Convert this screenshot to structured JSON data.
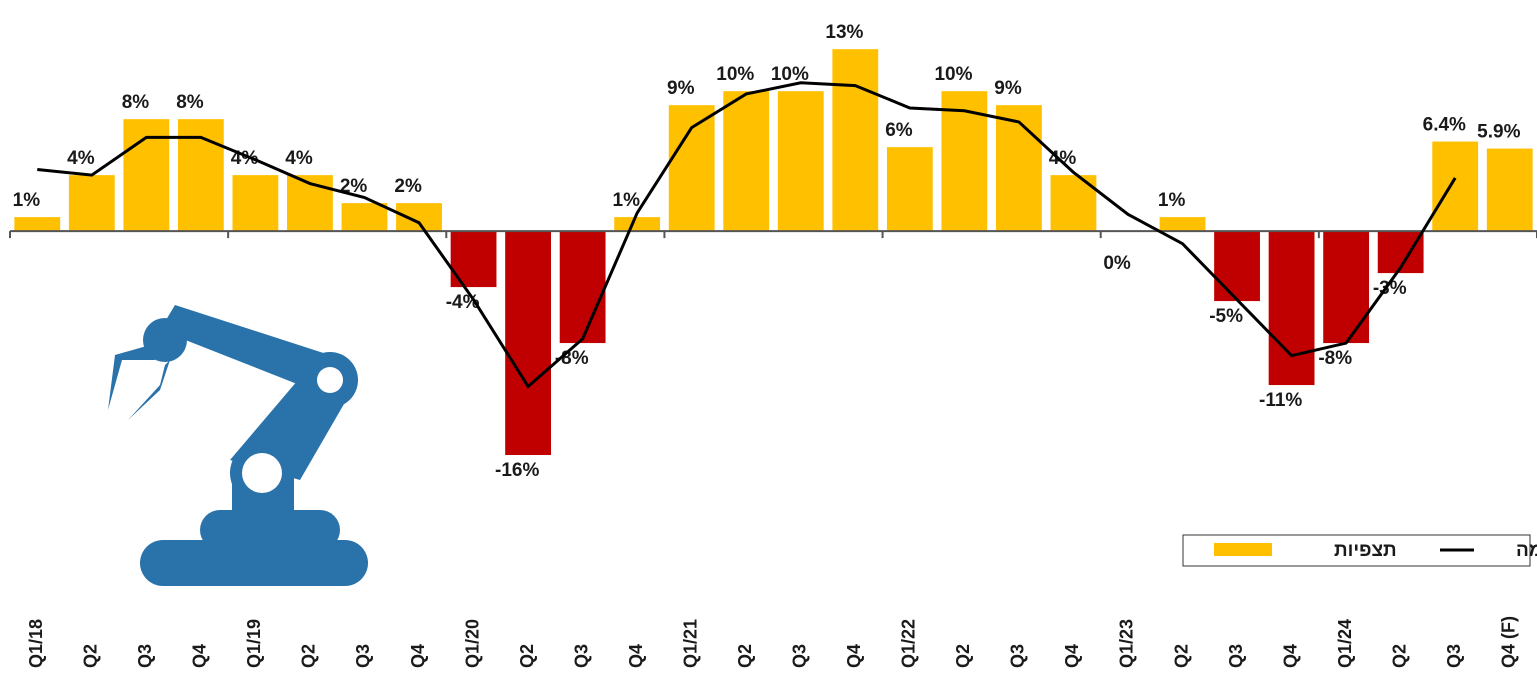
{
  "chart_data": {
    "type": "bar",
    "categories": [
      "Q1/18",
      "Q2",
      "Q3",
      "Q4",
      "Q1/19",
      "Q2",
      "Q3",
      "Q4",
      "Q1/20",
      "Q2",
      "Q3",
      "Q4",
      "Q1/21",
      "Q2",
      "Q3",
      "Q4",
      "Q1/22",
      "Q2",
      "Q3",
      "Q4",
      "Q1/23",
      "Q2",
      "Q3",
      "Q4",
      "Q1/24",
      "Q2",
      "Q3",
      "Q4 (F)"
    ],
    "series": [
      {
        "name": "תצפיות",
        "type": "bar",
        "color": "#ffc000",
        "negative_color": "#c00000",
        "values": [
          1,
          4,
          8,
          8,
          4,
          4,
          2,
          2,
          -4,
          -16,
          -8,
          1,
          9,
          10,
          10,
          13,
          6,
          10,
          9,
          4,
          0,
          1,
          -5,
          -11,
          -8,
          -3,
          6.4,
          5.9
        ],
        "value_labels": [
          "1%",
          "4%",
          "8%",
          "8%",
          "4%",
          "4%",
          "2%",
          "2%",
          "-4%",
          "-16%",
          "-8%",
          "1%",
          "9%",
          "10%",
          "10%",
          "13%",
          "6%",
          "10%",
          "9%",
          "4%",
          "0%",
          "1%",
          "-5%",
          "-11%",
          "-8%",
          "-3%",
          "6.4%",
          "5.9%"
        ]
      },
      {
        "name": "מגמה",
        "type": "line",
        "color": "#000000",
        "values": [
          4.4,
          4.0,
          6.7,
          6.7,
          5.1,
          3.4,
          2.4,
          0.6,
          -4.9,
          -11.1,
          -7.7,
          1.3,
          7.4,
          9.8,
          10.6,
          10.4,
          8.8,
          8.6,
          7.8,
          4.2,
          1.2,
          -0.9,
          -4.9,
          -8.9,
          -8.0,
          -2.6,
          3.8,
          null
        ]
      }
    ],
    "ylim": [
      -18,
      15.8
    ],
    "grid": false
  }
}
